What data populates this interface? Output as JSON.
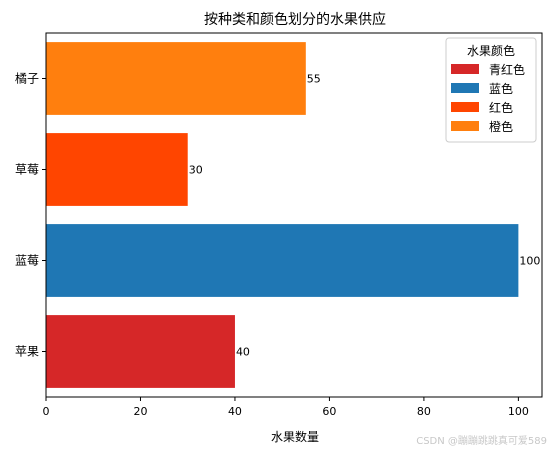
{
  "chart_data": {
    "type": "bar",
    "orientation": "horizontal",
    "title": "按种类和颜色划分的水果供应",
    "xlabel": "水果数量",
    "ylabel": "",
    "categories": [
      "苹果",
      "蓝莓",
      "草莓",
      "橘子"
    ],
    "values": [
      40,
      100,
      30,
      55
    ],
    "bar_colors": [
      "#d62728",
      "#1f77b4",
      "#ff4500",
      "#ff7f0e"
    ],
    "data_labels": [
      "40",
      "100",
      "30",
      "55"
    ],
    "xlim": [
      0,
      105
    ],
    "xticks": [
      0,
      20,
      40,
      60,
      80,
      100
    ],
    "xtick_labels": [
      "0",
      "20",
      "40",
      "60",
      "80",
      "100"
    ],
    "grid": false,
    "legend": {
      "title": "水果颜色",
      "placement": "top-right",
      "entries": [
        {
          "label": "青红色",
          "color": "#d62728"
        },
        {
          "label": "蓝色",
          "color": "#1f77b4"
        },
        {
          "label": "红色",
          "color": "#ff4500"
        },
        {
          "label": "橙色",
          "color": "#ff7f0e"
        }
      ]
    }
  },
  "watermark": "CSDN @蹦蹦跳跳真可爱589"
}
